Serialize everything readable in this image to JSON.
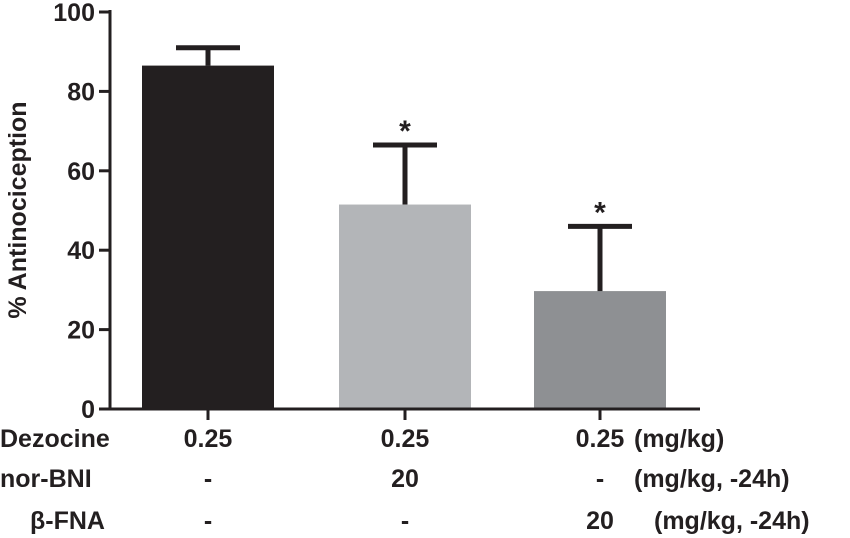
{
  "chart_data": {
    "type": "bar",
    "ylabel": "% Antinociception",
    "ylim": [
      0,
      100
    ],
    "yticks": [
      0,
      20,
      40,
      60,
      80,
      100
    ],
    "grid": false,
    "bars": [
      {
        "value": 86.5,
        "error": 4.5,
        "color": "#231f20",
        "significance": ""
      },
      {
        "value": 51.5,
        "error": 15.0,
        "color": "#b3b5b8",
        "significance": "*"
      },
      {
        "value": 29.7,
        "error": 16.3,
        "color": "#8e9093",
        "significance": "*"
      }
    ],
    "treatment_table": {
      "rows": [
        {
          "label": "Dezocine",
          "cells": [
            "0.25",
            "0.25",
            "0.25"
          ],
          "unit": "(mg/kg)"
        },
        {
          "label": "nor-BNI",
          "cells": [
            "-",
            "20",
            "-"
          ],
          "unit": "(mg/kg, -24h)"
        },
        {
          "label": "β-FNA",
          "cells": [
            "-",
            "-",
            "20"
          ],
          "unit": "(mg/kg, -24h)"
        }
      ]
    }
  }
}
